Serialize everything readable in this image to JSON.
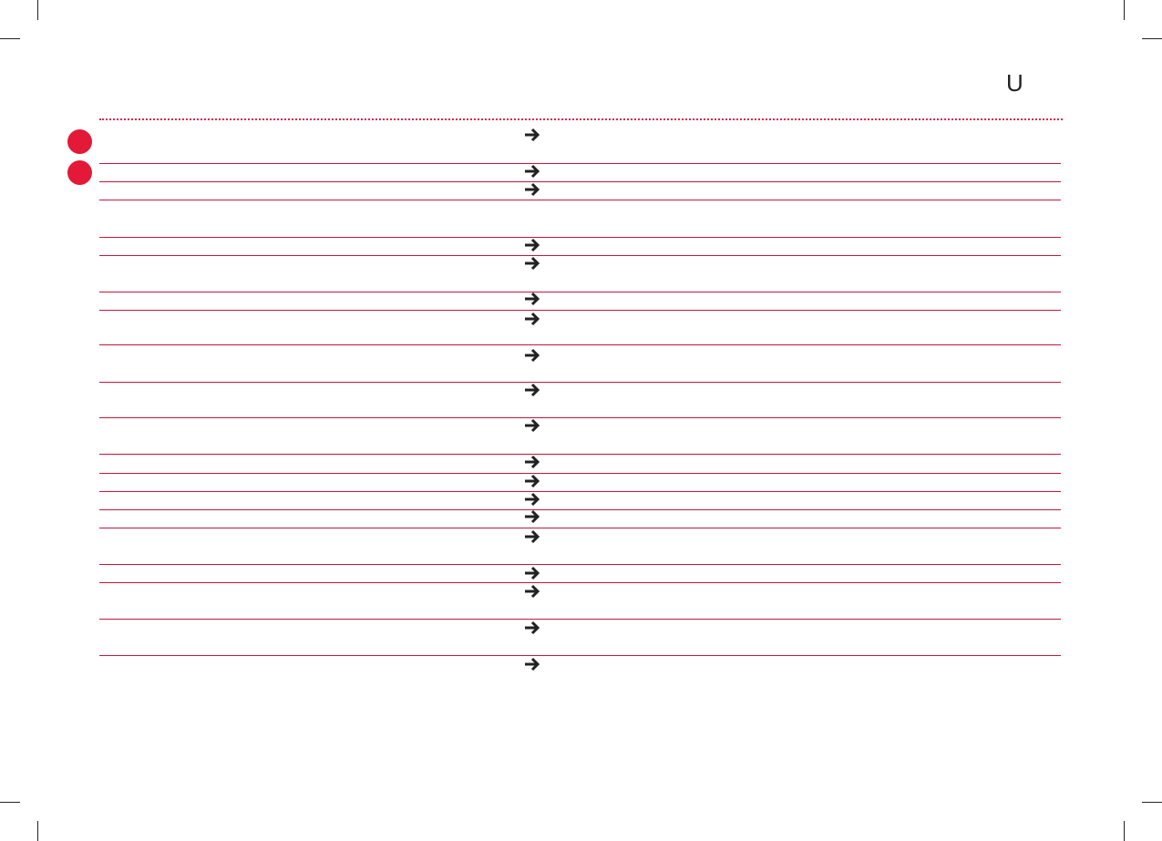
{
  "header": {
    "glyph": "U",
    "icon": "u-shaped-icon"
  },
  "colors": {
    "accent": "#e31937",
    "rule": "#c4173c",
    "arrow": "#222222"
  },
  "markers": [
    {
      "icon": "red-circle"
    },
    {
      "icon": "red-circle"
    }
  ],
  "rows_icon": "right-arrow-icon"
}
